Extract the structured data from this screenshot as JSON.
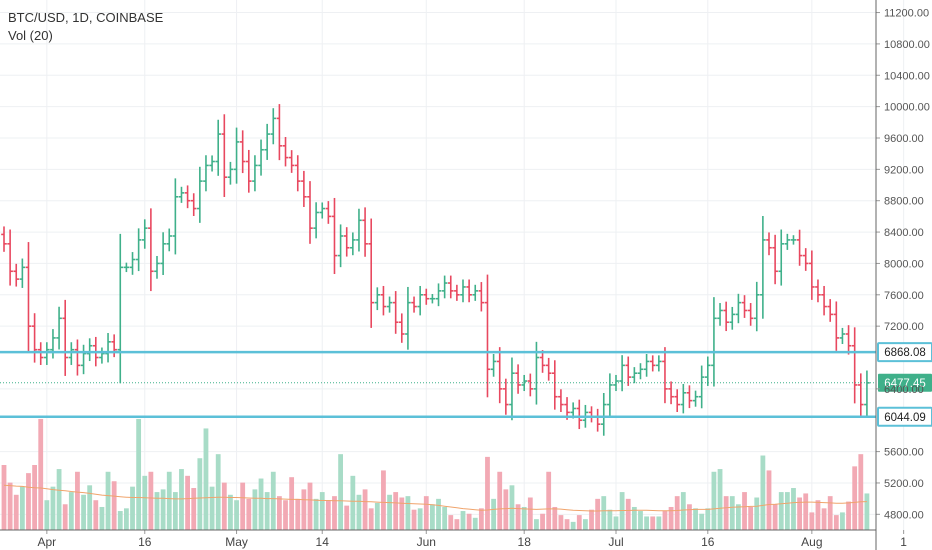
{
  "legend": {
    "symbol": "BTC/USD, 1D, COINBASE",
    "indicator": "Vol (20)"
  },
  "colors": {
    "up": "#3fb08a",
    "down": "#e8485f",
    "up_vol": "#a8dcc7",
    "down_vol": "#f2a9b4",
    "level_line": "#5cc0d8",
    "last_price": "#3fb08a",
    "vol_ma": "#f0a46c"
  },
  "chart_data": {
    "type": "ohlc",
    "title": "BTC/USD, 1D, COINBASE",
    "y_ticks": [
      "11200.00",
      "10800.00",
      "10400.00",
      "10000.00",
      "9600.00",
      "9200.00",
      "8800.00",
      "8400.00",
      "8000.00",
      "7600.00",
      "7200.00",
      "6400.00",
      "5600.00",
      "5200.00",
      "4800.00"
    ],
    "x_ticks": [
      "Apr",
      "16",
      "May",
      "14",
      "Jun",
      "18",
      "Jul",
      "16",
      "Aug",
      "1"
    ],
    "ylim": [
      4600,
      11360
    ],
    "levels": [
      {
        "label": "6868.08",
        "value": 6868.08
      },
      {
        "label": "6044.09",
        "value": 6044.09
      }
    ],
    "last_price": {
      "label": "6477.45",
      "value": 6477.45
    },
    "close": [
      8250,
      7900,
      7800,
      7950,
      7200,
      6900,
      6800,
      6900,
      7050,
      7300,
      6800,
      6900,
      6700,
      6850,
      6950,
      6800,
      6850,
      7000,
      6900,
      7950,
      7950,
      8050,
      8300,
      8450,
      7900,
      8000,
      8250,
      8350,
      8850,
      8900,
      8800,
      8700,
      9050,
      9250,
      9300,
      9650,
      9100,
      9200,
      9550,
      9300,
      9050,
      9250,
      9450,
      9650,
      9850,
      9500,
      9350,
      9250,
      9050,
      8850,
      8450,
      8650,
      8700,
      8600,
      8100,
      8350,
      8200,
      8300,
      8550,
      8250,
      7500,
      7600,
      7450,
      7500,
      7250,
      7100,
      7500,
      7450,
      7600,
      7550,
      7550,
      7650,
      7750,
      7650,
      7600,
      7700,
      7600,
      7650,
      7500,
      6650,
      6750,
      6400,
      6200,
      6600,
      6450,
      6500,
      6400,
      6800,
      6700,
      6600,
      6300,
      6200,
      6100,
      6150,
      6000,
      6100,
      6050,
      5950,
      6200,
      6450,
      6500,
      6700,
      6550,
      6600,
      6650,
      6750,
      6700,
      6750,
      6400,
      6300,
      6200,
      6350,
      6250,
      6300,
      6550,
      6700,
      7300,
      7400,
      7250,
      7350,
      7500,
      7400,
      7300,
      7600,
      8300,
      8200,
      7900,
      8250,
      8300,
      8300,
      8100,
      8000,
      7700,
      7600,
      7450,
      7350,
      7050,
      7100,
      6950,
      6450,
      6200,
      6477
    ],
    "volume_ylim": [
      0,
      480
    ],
    "volume": [
      240,
      175,
      130,
      160,
      210,
      240,
      410,
      110,
      160,
      225,
      95,
      140,
      215,
      130,
      165,
      110,
      85,
      215,
      180,
      70,
      80,
      160,
      410,
      200,
      215,
      140,
      150,
      215,
      140,
      225,
      200,
      155,
      265,
      375,
      160,
      280,
      175,
      130,
      110,
      175,
      115,
      150,
      190,
      140,
      215,
      125,
      110,
      195,
      115,
      150,
      175,
      115,
      140,
      110,
      125,
      280,
      90,
      200,
      130,
      150,
      80,
      100,
      220,
      130,
      140,
      120,
      125,
      75,
      80,
      125,
      95,
      115,
      85,
      55,
      40,
      70,
      60,
      45,
      80,
      270,
      115,
      215,
      150,
      165,
      95,
      85,
      120,
      40,
      60,
      215,
      85,
      55,
      40,
      30,
      55,
      40,
      75,
      115,
      125,
      75,
      50,
      140,
      115,
      85,
      70,
      50,
      50,
      50,
      70,
      85,
      125,
      140,
      95,
      80,
      60,
      80,
      215,
      225,
      125,
      125,
      95,
      140,
      85,
      120,
      275,
      220,
      95,
      140,
      140,
      155,
      120,
      135,
      65,
      110,
      80,
      125,
      55,
      65,
      105,
      235,
      280,
      135
    ],
    "volume_ma": [
      165,
      164,
      162,
      161,
      158,
      156,
      155,
      152,
      149,
      147,
      145,
      142,
      140,
      138,
      135,
      132,
      129,
      127,
      125,
      123,
      121,
      120,
      120,
      119,
      118,
      117,
      117,
      116,
      115,
      115,
      116,
      117,
      118,
      119,
      120,
      121,
      121,
      120,
      120,
      119,
      118,
      117,
      117,
      116,
      116,
      115,
      114,
      113,
      113,
      112,
      111,
      110,
      109,
      109,
      108,
      108,
      107,
      106,
      106,
      105,
      104,
      103,
      102,
      101,
      100,
      99,
      98,
      97,
      96,
      95,
      93,
      91,
      88,
      85,
      82,
      79,
      77,
      75,
      73,
      74,
      76,
      78,
      79,
      80,
      79,
      78,
      77,
      76,
      77,
      78,
      78,
      77,
      75,
      73,
      72,
      71,
      70,
      70,
      71,
      71,
      71,
      72,
      72,
      73,
      73,
      73,
      72,
      71,
      71,
      71,
      72,
      74,
      75,
      76,
      76,
      76,
      78,
      80,
      82,
      84,
      85,
      86,
      87,
      88,
      91,
      94,
      95,
      97,
      99,
      101,
      102,
      103,
      103,
      102,
      101,
      100,
      99,
      99,
      100,
      102,
      104,
      105
    ]
  }
}
